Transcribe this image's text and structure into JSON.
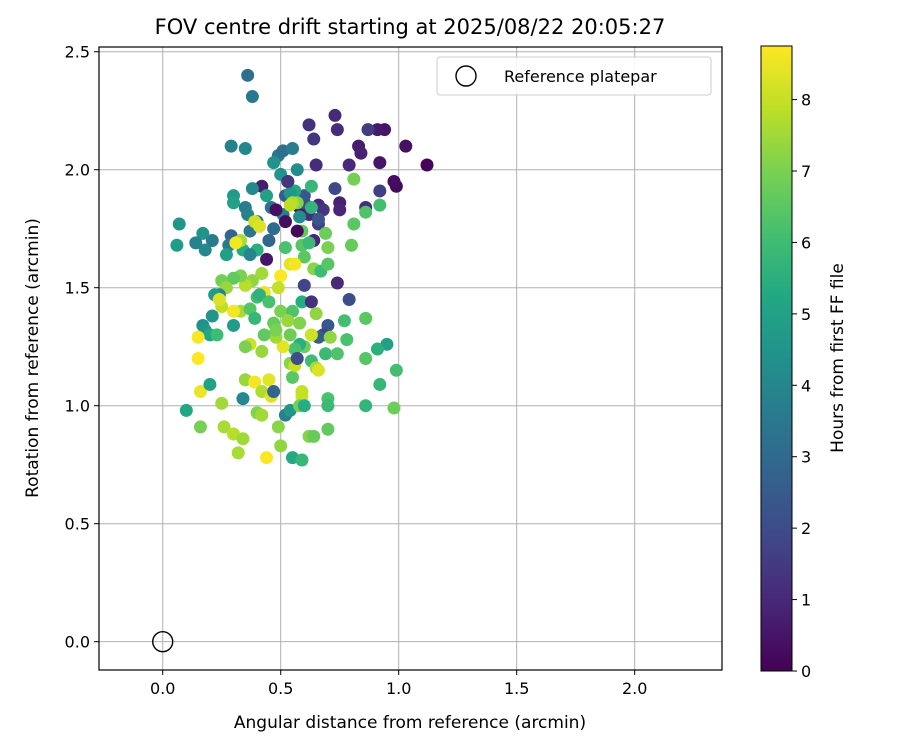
{
  "chart_data": {
    "type": "scatter",
    "title": "FOV centre drift starting at 2025/08/22 20:05:27",
    "xlabel": "Angular distance from reference (arcmin)",
    "ylabel": "Rotation from reference (arcmin)",
    "xlim": [
      -0.27,
      2.37
    ],
    "ylim": [
      -0.12,
      2.52
    ],
    "xticks": [
      0.0,
      0.5,
      1.0,
      1.5,
      2.0
    ],
    "xtick_labels": [
      "0.0",
      "0.5",
      "1.0",
      "1.5",
      "2.0"
    ],
    "yticks": [
      0.0,
      0.5,
      1.0,
      1.5,
      2.0,
      2.5
    ],
    "ytick_labels": [
      "0.0",
      "0.5",
      "1.0",
      "1.5",
      "2.0",
      "2.5"
    ],
    "grid": true,
    "legend": {
      "position": "top-right",
      "entries": [
        {
          "label": "Reference platepar",
          "marker": "open-circle"
        }
      ]
    },
    "reference_point": {
      "x": 0.0,
      "y": 0.0
    },
    "colorbar": {
      "label": "Hours from first FF file",
      "range": [
        0,
        8.75
      ],
      "colormap": "viridis",
      "ticks": [
        0,
        1,
        2,
        3,
        4,
        5,
        6,
        7,
        8
      ],
      "tick_labels": [
        "0",
        "1",
        "2",
        "3",
        "4",
        "5",
        "6",
        "7",
        "8"
      ]
    },
    "points": [
      [
        1.12,
        2.02,
        0.1
      ],
      [
        0.99,
        1.93,
        0.2
      ],
      [
        0.98,
        1.95,
        0.3
      ],
      [
        1.03,
        2.1,
        0.4
      ],
      [
        0.94,
        2.17,
        0.5
      ],
      [
        0.91,
        2.17,
        0.6
      ],
      [
        0.92,
        2.03,
        0.5
      ],
      [
        0.83,
        2.1,
        0.7
      ],
      [
        0.84,
        2.07,
        0.8
      ],
      [
        0.73,
        2.23,
        1.0
      ],
      [
        0.74,
        2.17,
        1.1
      ],
      [
        0.62,
        2.19,
        1.2
      ],
      [
        0.64,
        2.13,
        1.3
      ],
      [
        0.87,
        2.17,
        1.5
      ],
      [
        0.92,
        1.91,
        1.6
      ],
      [
        0.86,
        1.84,
        1.2
      ],
      [
        0.79,
        2.02,
        1.0
      ],
      [
        0.65,
        2.02,
        1.1
      ],
      [
        0.73,
        1.92,
        1.9
      ],
      [
        0.75,
        1.86,
        0.8
      ],
      [
        0.75,
        1.83,
        0.9
      ],
      [
        0.66,
        1.85,
        1.0
      ],
      [
        0.62,
        1.81,
        1.1
      ],
      [
        0.58,
        1.84,
        0.6
      ],
      [
        0.68,
        1.83,
        1.3
      ],
      [
        0.66,
        1.77,
        1.6
      ],
      [
        0.64,
        1.7,
        0.9
      ],
      [
        0.53,
        1.95,
        1.7
      ],
      [
        0.6,
        1.86,
        2.1
      ],
      [
        0.6,
        1.89,
        2.4
      ],
      [
        0.52,
        1.89,
        2.6
      ],
      [
        0.42,
        1.93,
        0.7
      ],
      [
        0.36,
        2.4,
        3.2
      ],
      [
        0.38,
        2.31,
        3.5
      ],
      [
        0.29,
        2.1,
        3.8
      ],
      [
        0.35,
        2.09,
        4.0
      ],
      [
        0.49,
        2.06,
        3.4
      ],
      [
        0.51,
        2.08,
        3.2
      ],
      [
        0.55,
        2.09,
        3.6
      ],
      [
        0.47,
        2.03,
        4.4
      ],
      [
        0.5,
        1.98,
        4.5
      ],
      [
        0.57,
        2.0,
        4.2
      ],
      [
        0.56,
        1.91,
        5.2
      ],
      [
        0.63,
        1.93,
        5.8
      ],
      [
        0.54,
        1.9,
        4.6
      ],
      [
        0.44,
        1.89,
        4.9
      ],
      [
        0.38,
        1.92,
        4.1
      ],
      [
        0.3,
        1.89,
        4.7
      ],
      [
        0.3,
        1.86,
        5.0
      ],
      [
        0.35,
        1.84,
        3.7
      ],
      [
        0.36,
        1.81,
        3.9
      ],
      [
        0.4,
        1.78,
        3.0
      ],
      [
        0.46,
        1.84,
        3.3
      ],
      [
        0.51,
        1.81,
        3.8
      ],
      [
        0.58,
        1.8,
        4.3
      ],
      [
        0.66,
        1.79,
        2.3
      ],
      [
        0.47,
        1.75,
        3.1
      ],
      [
        0.45,
        1.7,
        2.9
      ],
      [
        0.37,
        1.74,
        3.4
      ],
      [
        0.29,
        1.72,
        2.8
      ],
      [
        0.28,
        1.68,
        3.5
      ],
      [
        0.21,
        1.7,
        3.6
      ],
      [
        0.17,
        1.73,
        4.4
      ],
      [
        0.14,
        1.69,
        3.9
      ],
      [
        0.07,
        1.77,
        4.6
      ],
      [
        0.06,
        1.68,
        4.8
      ],
      [
        0.18,
        1.66,
        4.1
      ],
      [
        0.27,
        1.64,
        4.9
      ],
      [
        0.34,
        1.66,
        5.3
      ],
      [
        0.4,
        1.66,
        5.5
      ],
      [
        0.37,
        1.64,
        4.0
      ],
      [
        0.52,
        1.67,
        6.2
      ],
      [
        0.59,
        1.68,
        6.4
      ],
      [
        0.62,
        1.69,
        5.9
      ],
      [
        0.59,
        1.74,
        6.6
      ],
      [
        0.69,
        1.73,
        6.8
      ],
      [
        0.7,
        1.67,
        7.0
      ],
      [
        0.8,
        1.68,
        6.7
      ],
      [
        0.81,
        1.77,
        6.5
      ],
      [
        0.86,
        1.82,
        6.3
      ],
      [
        0.92,
        1.85,
        6.1
      ],
      [
        0.81,
        1.96,
        6.9
      ],
      [
        0.63,
        1.84,
        5.7
      ],
      [
        0.57,
        1.86,
        7.1
      ],
      [
        0.55,
        1.86,
        7.7
      ],
      [
        0.54,
        1.85,
        7.9
      ],
      [
        0.39,
        1.78,
        8.1
      ],
      [
        0.41,
        1.76,
        8.3
      ],
      [
        0.33,
        1.7,
        7.6
      ],
      [
        0.31,
        1.69,
        8.6
      ],
      [
        0.6,
        1.63,
        6.5
      ],
      [
        0.64,
        1.58,
        7.2
      ],
      [
        0.67,
        1.57,
        6.0
      ],
      [
        0.7,
        1.6,
        6.4
      ],
      [
        0.74,
        1.52,
        1.0
      ],
      [
        0.6,
        1.51,
        1.8
      ],
      [
        0.54,
        1.6,
        8.4
      ],
      [
        0.56,
        1.6,
        8.6
      ],
      [
        0.5,
        1.55,
        8.8
      ],
      [
        0.49,
        1.5,
        8.0
      ],
      [
        0.43,
        1.48,
        8.5
      ],
      [
        0.42,
        1.56,
        7.5
      ],
      [
        0.38,
        1.53,
        7.3
      ],
      [
        0.35,
        1.51,
        7.8
      ],
      [
        0.33,
        1.55,
        7.0
      ],
      [
        0.3,
        1.54,
        6.6
      ],
      [
        0.25,
        1.53,
        6.9
      ],
      [
        0.27,
        1.5,
        7.4
      ],
      [
        0.24,
        1.47,
        3.9
      ],
      [
        0.22,
        1.47,
        4.8
      ],
      [
        0.21,
        1.38,
        4.5
      ],
      [
        0.17,
        1.34,
        4.3
      ],
      [
        0.18,
        1.32,
        4.6
      ],
      [
        0.2,
        1.3,
        5.2
      ],
      [
        0.23,
        1.3,
        6.0
      ],
      [
        0.3,
        1.34,
        4.8
      ],
      [
        0.33,
        1.4,
        7.6
      ],
      [
        0.37,
        1.41,
        6.4
      ],
      [
        0.39,
        1.37,
        5.8
      ],
      [
        0.4,
        1.46,
        6.1
      ],
      [
        0.41,
        1.47,
        5.6
      ],
      [
        0.45,
        1.44,
        6.2
      ],
      [
        0.47,
        1.35,
        6.7
      ],
      [
        0.5,
        1.4,
        7.0
      ],
      [
        0.55,
        1.4,
        6.3
      ],
      [
        0.53,
        1.36,
        7.4
      ],
      [
        0.54,
        1.3,
        6.8
      ],
      [
        0.58,
        1.35,
        7.1
      ],
      [
        0.59,
        1.44,
        5.4
      ],
      [
        0.63,
        1.44,
        1.2
      ],
      [
        0.65,
        1.39,
        7.3
      ],
      [
        0.7,
        1.34,
        2.4
      ],
      [
        0.68,
        1.3,
        1.8
      ],
      [
        0.66,
        1.29,
        2.6
      ],
      [
        0.69,
        1.22,
        5.9
      ],
      [
        0.74,
        1.22,
        6.3
      ],
      [
        0.78,
        1.28,
        6.2
      ],
      [
        0.79,
        1.45,
        2.1
      ],
      [
        0.77,
        1.36,
        6.1
      ],
      [
        0.86,
        1.37,
        6.5
      ],
      [
        0.95,
        1.26,
        4.9
      ],
      [
        0.91,
        1.24,
        5.5
      ],
      [
        0.86,
        1.2,
        6.4
      ],
      [
        0.92,
        1.09,
        5.8
      ],
      [
        0.99,
        1.15,
        6.1
      ],
      [
        0.71,
        1.29,
        7.3
      ],
      [
        0.63,
        1.3,
        8.1
      ],
      [
        0.6,
        1.25,
        6.8
      ],
      [
        0.58,
        1.26,
        5.5
      ],
      [
        0.56,
        1.24,
        6.2
      ],
      [
        0.51,
        1.25,
        8.4
      ],
      [
        0.48,
        1.29,
        7.5
      ],
      [
        0.48,
        1.32,
        7.0
      ],
      [
        0.43,
        1.3,
        6.6
      ],
      [
        0.42,
        1.23,
        7.4
      ],
      [
        0.37,
        1.26,
        8.1
      ],
      [
        0.35,
        1.25,
        7.0
      ],
      [
        0.3,
        1.4,
        8.6
      ],
      [
        0.25,
        1.42,
        7.9
      ],
      [
        0.24,
        1.45,
        8.3
      ],
      [
        0.15,
        1.29,
        8.7
      ],
      [
        0.15,
        1.2,
        8.8
      ],
      [
        0.16,
        1.06,
        8.5
      ],
      [
        0.1,
        0.98,
        5.2
      ],
      [
        0.2,
        1.09,
        5.0
      ],
      [
        0.25,
        1.01,
        7.5
      ],
      [
        0.26,
        0.91,
        7.6
      ],
      [
        0.3,
        0.88,
        7.8
      ],
      [
        0.34,
        0.86,
        7.5
      ],
      [
        0.32,
        0.8,
        7.6
      ],
      [
        0.34,
        1.03,
        4.0
      ],
      [
        0.35,
        1.11,
        7.4
      ],
      [
        0.39,
        1.1,
        8.6
      ],
      [
        0.42,
        1.06,
        7.7
      ],
      [
        0.4,
        0.97,
        7.1
      ],
      [
        0.42,
        0.96,
        7.5
      ],
      [
        0.45,
        1.11,
        8.4
      ],
      [
        0.46,
        1.04,
        8.3
      ],
      [
        0.47,
        1.06,
        2.8
      ],
      [
        0.49,
        0.91,
        7.2
      ],
      [
        0.5,
        0.83,
        7.3
      ],
      [
        0.52,
        0.96,
        3.8
      ],
      [
        0.54,
        0.98,
        4.6
      ],
      [
        0.55,
        1.12,
        6.5
      ],
      [
        0.54,
        1.18,
        7.2
      ],
      [
        0.56,
        1.17,
        8.0
      ],
      [
        0.57,
        1.2,
        2.0
      ],
      [
        0.59,
        1.04,
        8.1
      ],
      [
        0.59,
        1.06,
        8.0
      ],
      [
        0.58,
        1.0,
        6.9
      ],
      [
        0.6,
        1.0,
        5.4
      ],
      [
        0.63,
        1.19,
        6.0
      ],
      [
        0.65,
        1.16,
        7.6
      ],
      [
        0.66,
        1.15,
        8.3
      ],
      [
        0.62,
        0.87,
        7.1
      ],
      [
        0.64,
        0.87,
        6.7
      ],
      [
        0.55,
        0.78,
        5.3
      ],
      [
        0.59,
        0.77,
        5.8
      ],
      [
        0.44,
        0.78,
        8.7
      ],
      [
        0.16,
        0.91,
        6.9
      ],
      [
        0.7,
        1.03,
        6.2
      ],
      [
        0.7,
        1.0,
        5.9
      ],
      [
        0.7,
        0.9,
        6.6
      ],
      [
        0.86,
        1.0,
        5.7
      ],
      [
        0.98,
        0.99,
        6.8
      ],
      [
        0.53,
        1.95,
        1.4
      ],
      [
        0.48,
        1.83,
        0.4
      ],
      [
        0.52,
        1.78,
        0.3
      ],
      [
        0.57,
        1.74,
        0.2
      ],
      [
        0.44,
        1.62,
        0.5
      ]
    ]
  }
}
